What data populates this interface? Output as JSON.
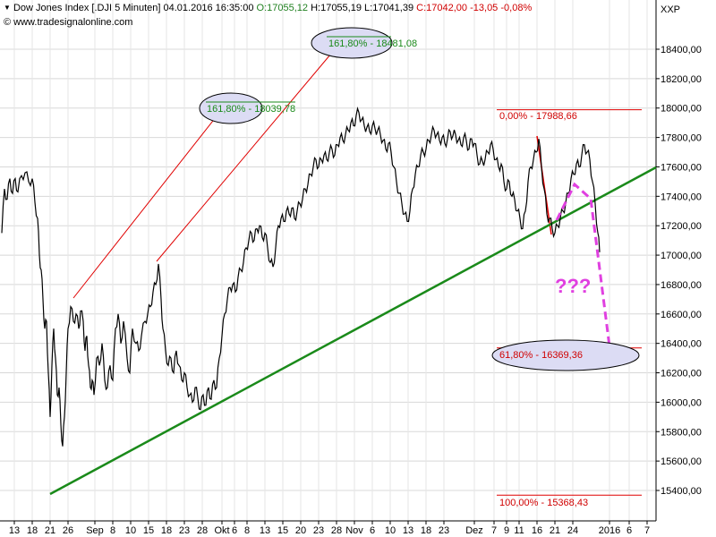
{
  "header": {
    "name": "Dow Jones Index [.DJI  5 Minuten]",
    "datetime": "04.01.2016 16:35:00",
    "open": "O:17055,12",
    "high": "H:17055,19",
    "low": "L:17041,39",
    "close": "C:17042,00",
    "change": "-13,05",
    "change_pct": "-0,08%",
    "source": "www.tradesignalonline.com",
    "axis_label": "XXP"
  },
  "colors": {
    "price": "#000000",
    "trendline": "#1a8a1a",
    "fib_line": "#e00000",
    "projection": "#e040e0",
    "ellipse_fill": "#dcdcf4",
    "grid": "#d8d8d8"
  },
  "chart_data": {
    "type": "line",
    "title": "Dow Jones Index [.DJI  5 Minuten]",
    "ylim": [
      15250,
      18650
    ],
    "y_ticks": [
      15400,
      15600,
      15800,
      16000,
      16200,
      16400,
      16600,
      16800,
      17000,
      17200,
      17400,
      17600,
      17800,
      18000,
      18200,
      18400
    ],
    "y_tick_labels": [
      "15400,00",
      "15600,00",
      "15800,00",
      "16000,00",
      "16200,00",
      "16400,00",
      "16600,00",
      "16800,00",
      "17000,00",
      "17200,00",
      "17400,00",
      "17600,00",
      "17800,00",
      "18000,00",
      "18200,00",
      "18400,00"
    ],
    "x_ticks": [
      "13",
      "18",
      "21",
      "26",
      "Sep",
      "8",
      "10",
      "15",
      "18",
      "23",
      "28",
      "Okt",
      "6",
      "8",
      "13",
      "15",
      "20",
      "23",
      "28",
      "Nov",
      "6",
      "10",
      "13",
      "18",
      "23",
      "Dez",
      "7",
      "9",
      "11",
      "16",
      "21",
      "24",
      "2016",
      "6",
      "7"
    ],
    "grid": true,
    "series": [
      {
        "points": [
          [
            0,
            17150
          ],
          [
            3,
            17450
          ],
          [
            6,
            17380
          ],
          [
            9,
            17520
          ],
          [
            12,
            17420
          ],
          [
            15,
            17520
          ],
          [
            18,
            17430
          ],
          [
            22,
            17540
          ],
          [
            26,
            17560
          ],
          [
            30,
            17500
          ],
          [
            34,
            17520
          ],
          [
            37,
            17360
          ],
          [
            40,
            17250
          ],
          [
            42,
            17000
          ],
          [
            44,
            16900
          ],
          [
            46,
            16700
          ],
          [
            48,
            16500
          ],
          [
            50,
            16550
          ],
          [
            52,
            16200
          ],
          [
            54,
            15900
          ],
          [
            56,
            16250
          ],
          [
            58,
            16500
          ],
          [
            60,
            16300
          ],
          [
            62,
            16050
          ],
          [
            64,
            16100
          ],
          [
            66,
            15850
          ],
          [
            68,
            15700
          ],
          [
            70,
            15900
          ],
          [
            72,
            16200
          ],
          [
            74,
            16500
          ],
          [
            77,
            16650
          ],
          [
            80,
            16550
          ],
          [
            83,
            16600
          ],
          [
            86,
            16500
          ],
          [
            88,
            16620
          ],
          [
            91,
            16550
          ],
          [
            93,
            16350
          ],
          [
            95,
            16450
          ],
          [
            97,
            16250
          ],
          [
            99,
            16100
          ],
          [
            101,
            16150
          ],
          [
            103,
            16050
          ],
          [
            106,
            16300
          ],
          [
            109,
            16250
          ],
          [
            112,
            16400
          ],
          [
            115,
            16150
          ],
          [
            118,
            16100
          ],
          [
            121,
            16250
          ],
          [
            124,
            16150
          ],
          [
            127,
            16500
          ],
          [
            130,
            16600
          ],
          [
            133,
            16400
          ],
          [
            136,
            16550
          ],
          [
            140,
            16300
          ],
          [
            143,
            16200
          ],
          [
            146,
            16500
          ],
          [
            150,
            16400
          ],
          [
            153,
            16350
          ],
          [
            156,
            16450
          ],
          [
            160,
            16550
          ],
          [
            163,
            16600
          ],
          [
            166,
            16650
          ],
          [
            169,
            16750
          ],
          [
            172,
            16800
          ],
          [
            175,
            16940
          ],
          [
            178,
            16700
          ],
          [
            180,
            16500
          ],
          [
            183,
            16350
          ],
          [
            186,
            16250
          ],
          [
            189,
            16300
          ],
          [
            192,
            16200
          ],
          [
            195,
            16350
          ],
          [
            198,
            16250
          ],
          [
            201,
            16150
          ],
          [
            204,
            16200
          ],
          [
            207,
            16100
          ],
          [
            210,
            16050
          ],
          [
            213,
            16000
          ],
          [
            216,
            16100
          ],
          [
            219,
            16030
          ],
          [
            222,
            15950
          ],
          [
            225,
            16050
          ],
          [
            228,
            15980
          ],
          [
            231,
            16100
          ],
          [
            234,
            16020
          ],
          [
            237,
            16150
          ],
          [
            240,
            16100
          ],
          [
            243,
            16300
          ],
          [
            246,
            16450
          ],
          [
            249,
            16600
          ],
          [
            252,
            16700
          ],
          [
            255,
            16780
          ],
          [
            258,
            16800
          ],
          [
            261,
            16750
          ],
          [
            264,
            16850
          ],
          [
            267,
            16900
          ],
          [
            270,
            16950
          ],
          [
            273,
            17050
          ],
          [
            276,
            17100
          ],
          [
            279,
            17150
          ],
          [
            282,
            17100
          ],
          [
            285,
            17180
          ],
          [
            288,
            17200
          ],
          [
            291,
            17120
          ],
          [
            294,
            17150
          ],
          [
            297,
            17050
          ],
          [
            300,
            16950
          ],
          [
            303,
            16920
          ],
          [
            306,
            17050
          ],
          [
            309,
            17200
          ],
          [
            312,
            17250
          ],
          [
            315,
            17230
          ],
          [
            318,
            17300
          ],
          [
            321,
            17280
          ],
          [
            324,
            17320
          ],
          [
            327,
            17250
          ],
          [
            330,
            17300
          ],
          [
            333,
            17350
          ],
          [
            336,
            17380
          ],
          [
            339,
            17450
          ],
          [
            342,
            17480
          ],
          [
            345,
            17550
          ],
          [
            348,
            17600
          ],
          [
            351,
            17650
          ],
          [
            354,
            17600
          ],
          [
            357,
            17650
          ],
          [
            360,
            17680
          ],
          [
            363,
            17650
          ],
          [
            366,
            17700
          ],
          [
            369,
            17720
          ],
          [
            372,
            17680
          ],
          [
            375,
            17750
          ],
          [
            378,
            17800
          ],
          [
            381,
            17780
          ],
          [
            384,
            17820
          ],
          [
            387,
            17850
          ],
          [
            390,
            17900
          ],
          [
            393,
            17880
          ],
          [
            396,
            17950
          ],
          [
            399,
            17970
          ],
          [
            402,
            17920
          ],
          [
            405,
            17880
          ],
          [
            408,
            17870
          ],
          [
            411,
            17840
          ],
          [
            414,
            17880
          ],
          [
            417,
            17860
          ],
          [
            420,
            17850
          ],
          [
            423,
            17820
          ],
          [
            426,
            17780
          ],
          [
            429,
            17720
          ],
          [
            432,
            17760
          ],
          [
            435,
            17700
          ],
          [
            438,
            17600
          ],
          [
            441,
            17500
          ],
          [
            444,
            17420
          ],
          [
            447,
            17350
          ],
          [
            450,
            17280
          ],
          [
            453,
            17230
          ],
          [
            456,
            17300
          ],
          [
            459,
            17450
          ],
          [
            462,
            17550
          ],
          [
            465,
            17600
          ],
          [
            468,
            17680
          ],
          [
            471,
            17700
          ],
          [
            474,
            17720
          ],
          [
            477,
            17780
          ],
          [
            480,
            17820
          ],
          [
            483,
            17850
          ],
          [
            486,
            17820
          ],
          [
            489,
            17780
          ],
          [
            492,
            17800
          ],
          [
            495,
            17760
          ],
          [
            498,
            17790
          ],
          [
            501,
            17840
          ],
          [
            504,
            17810
          ],
          [
            507,
            17820
          ],
          [
            510,
            17780
          ],
          [
            513,
            17750
          ],
          [
            516,
            17800
          ],
          [
            519,
            17780
          ],
          [
            522,
            17720
          ],
          [
            525,
            17790
          ],
          [
            528,
            17760
          ],
          [
            531,
            17680
          ],
          [
            534,
            17620
          ],
          [
            537,
            17640
          ],
          [
            540,
            17650
          ],
          [
            543,
            17700
          ],
          [
            546,
            17750
          ],
          [
            549,
            17720
          ],
          [
            552,
            17650
          ],
          [
            555,
            17600
          ],
          [
            558,
            17620
          ],
          [
            561,
            17500
          ],
          [
            564,
            17450
          ],
          [
            567,
            17500
          ],
          [
            570,
            17400
          ],
          [
            573,
            17380
          ],
          [
            576,
            17300
          ],
          [
            579,
            17250
          ],
          [
            582,
            17180
          ],
          [
            585,
            17300
          ],
          [
            588,
            17500
          ],
          [
            591,
            17600
          ],
          [
            594,
            17650
          ],
          [
            597,
            17700
          ],
          [
            600,
            17790
          ],
          [
            603,
            17600
          ],
          [
            606,
            17450
          ],
          [
            609,
            17280
          ],
          [
            612,
            17250
          ],
          [
            615,
            17180
          ],
          [
            618,
            17150
          ],
          [
            621,
            17200
          ],
          [
            624,
            17250
          ],
          [
            627,
            17300
          ],
          [
            630,
            17350
          ],
          [
            633,
            17420
          ],
          [
            636,
            17520
          ],
          [
            639,
            17550
          ],
          [
            642,
            17620
          ],
          [
            645,
            17600
          ],
          [
            648,
            17680
          ],
          [
            651,
            17750
          ],
          [
            654,
            17700
          ],
          [
            657,
            17650
          ],
          [
            660,
            17500
          ],
          [
            663,
            17350
          ],
          [
            666,
            17150
          ],
          [
            668,
            17020
          ]
        ]
      }
    ],
    "annotations": [
      {
        "label": "161,80% - 18481,08",
        "value": 18481.08
      },
      {
        "label": "161,80% - 18039,78",
        "value": 18039.78
      },
      {
        "label": "0,00% - 17988,66",
        "value": 17988.66
      },
      {
        "label": "61,80% - 16369,36",
        "value": 16369.36
      },
      {
        "label": "100,00% - 15368,43",
        "value": 15368.43
      },
      {
        "label": "???"
      }
    ]
  }
}
